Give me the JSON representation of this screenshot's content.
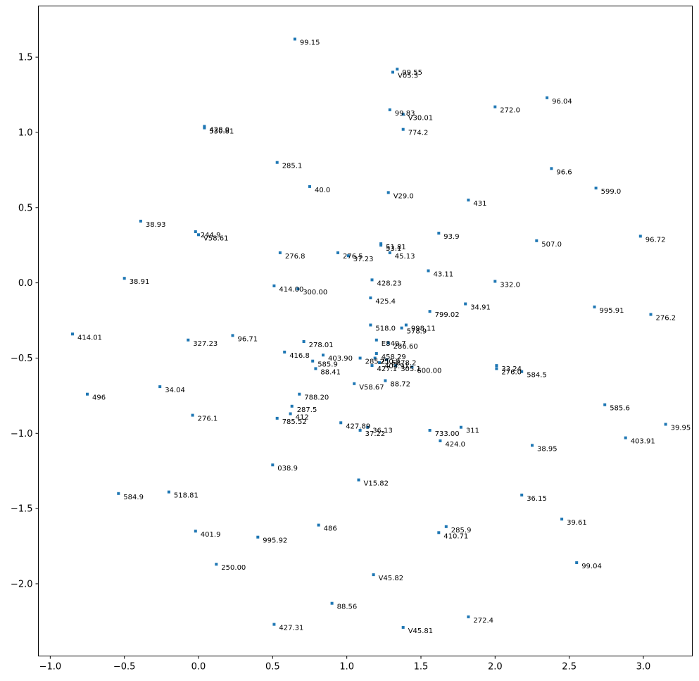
{
  "chart_data": {
    "type": "scatter",
    "title": "",
    "xlabel": "",
    "ylabel": "",
    "xlim": [
      -1.08,
      3.33
    ],
    "ylim": [
      -2.48,
      1.84
    ],
    "grid": false,
    "xticks": [
      {
        "v": -1.0,
        "label": "−1.0"
      },
      {
        "v": -0.5,
        "label": "−0.5"
      },
      {
        "v": 0.0,
        "label": "0.0"
      },
      {
        "v": 0.5,
        "label": "0.5"
      },
      {
        "v": 1.0,
        "label": "1.0"
      },
      {
        "v": 1.5,
        "label": "1.5"
      },
      {
        "v": 2.0,
        "label": "2.0"
      },
      {
        "v": 2.5,
        "label": "2.5"
      },
      {
        "v": 3.0,
        "label": "3.0"
      }
    ],
    "yticks": [
      {
        "v": 1.5,
        "label": "1.5"
      },
      {
        "v": 1.0,
        "label": "1.0"
      },
      {
        "v": 0.5,
        "label": "0.5"
      },
      {
        "v": 0.0,
        "label": "0.0"
      },
      {
        "v": -0.5,
        "label": "−0.5"
      },
      {
        "v": -1.0,
        "label": "−1.0"
      },
      {
        "v": -1.5,
        "label": "−1.5"
      },
      {
        "v": -2.0,
        "label": "−2.0"
      }
    ],
    "color": "#1f77b4",
    "points": [
      {
        "x": 0.65,
        "y": 1.62,
        "label": "99.15"
      },
      {
        "x": 1.34,
        "y": 1.42,
        "label": "99.55"
      },
      {
        "x": 1.31,
        "y": 1.4,
        "label": "V05.3"
      },
      {
        "x": 2.35,
        "y": 1.23,
        "label": "96.04"
      },
      {
        "x": 2.0,
        "y": 1.17,
        "label": "272.0"
      },
      {
        "x": 1.29,
        "y": 1.15,
        "label": "99.83"
      },
      {
        "x": 1.38,
        "y": 1.12,
        "label": "V30.01"
      },
      {
        "x": 1.38,
        "y": 1.02,
        "label": "774.2"
      },
      {
        "x": 0.04,
        "y": 1.04,
        "label": "428.0"
      },
      {
        "x": 0.04,
        "y": 1.03,
        "label": "530.81"
      },
      {
        "x": 0.53,
        "y": 0.8,
        "label": "285.1"
      },
      {
        "x": 2.38,
        "y": 0.76,
        "label": "96.6"
      },
      {
        "x": 0.75,
        "y": 0.64,
        "label": "40.0"
      },
      {
        "x": 2.68,
        "y": 0.63,
        "label": "599.0"
      },
      {
        "x": 1.28,
        "y": 0.6,
        "label": "V29.0"
      },
      {
        "x": 1.82,
        "y": 0.55,
        "label": "431"
      },
      {
        "x": -0.39,
        "y": 0.41,
        "label": "38.93"
      },
      {
        "x": -0.02,
        "y": 0.34,
        "label": "244.9"
      },
      {
        "x": 0.0,
        "y": 0.32,
        "label": "V58.61"
      },
      {
        "x": 1.62,
        "y": 0.33,
        "label": "93.9"
      },
      {
        "x": 2.98,
        "y": 0.31,
        "label": "96.72"
      },
      {
        "x": 2.28,
        "y": 0.28,
        "label": "507.0"
      },
      {
        "x": 1.23,
        "y": 0.26,
        "label": "51.81"
      },
      {
        "x": 1.23,
        "y": 0.25,
        "label": "53.1"
      },
      {
        "x": 1.29,
        "y": 0.2,
        "label": "45.13"
      },
      {
        "x": 0.55,
        "y": 0.2,
        "label": "276.8"
      },
      {
        "x": 0.94,
        "y": 0.2,
        "label": "276.5"
      },
      {
        "x": 1.01,
        "y": 0.18,
        "label": "37.23"
      },
      {
        "x": 1.55,
        "y": 0.08,
        "label": "43.11"
      },
      {
        "x": 1.17,
        "y": 0.02,
        "label": "428.23"
      },
      {
        "x": 2.0,
        "y": 0.01,
        "label": "332.0"
      },
      {
        "x": -0.5,
        "y": 0.03,
        "label": "38.91"
      },
      {
        "x": 0.51,
        "y": -0.02,
        "label": "414.00"
      },
      {
        "x": 0.67,
        "y": -0.04,
        "label": "300.00"
      },
      {
        "x": 1.16,
        "y": -0.1,
        "label": "425.4"
      },
      {
        "x": 1.8,
        "y": -0.14,
        "label": "34.91"
      },
      {
        "x": 2.67,
        "y": -0.16,
        "label": "995.91"
      },
      {
        "x": 1.56,
        "y": -0.19,
        "label": "799.02"
      },
      {
        "x": 3.05,
        "y": -0.21,
        "label": "276.2"
      },
      {
        "x": 1.16,
        "y": -0.28,
        "label": "518.0"
      },
      {
        "x": 1.4,
        "y": -0.28,
        "label": "998.11"
      },
      {
        "x": 1.37,
        "y": -0.3,
        "label": "578.9"
      },
      {
        "x": -0.85,
        "y": -0.34,
        "label": "414.01"
      },
      {
        "x": 0.23,
        "y": -0.35,
        "label": "96.71"
      },
      {
        "x": -0.07,
        "y": -0.38,
        "label": "327.23"
      },
      {
        "x": 0.71,
        "y": -0.39,
        "label": "278.01"
      },
      {
        "x": 1.2,
        "y": -0.38,
        "label": "E849.7"
      },
      {
        "x": 1.28,
        "y": -0.4,
        "label": "286.60"
      },
      {
        "x": 0.58,
        "y": -0.46,
        "label": "416.8"
      },
      {
        "x": 0.84,
        "y": -0.48,
        "label": "403.90"
      },
      {
        "x": 1.2,
        "y": -0.47,
        "label": "458.29"
      },
      {
        "x": 1.09,
        "y": -0.5,
        "label": "285.21"
      },
      {
        "x": 1.19,
        "y": -0.5,
        "label": "250.8"
      },
      {
        "x": 1.27,
        "y": -0.51,
        "label": "E878.2"
      },
      {
        "x": 0.77,
        "y": -0.52,
        "label": "585.9"
      },
      {
        "x": 1.22,
        "y": -0.53,
        "label": "403.91"
      },
      {
        "x": 1.17,
        "y": -0.55,
        "label": "427.1"
      },
      {
        "x": 1.33,
        "y": -0.55,
        "label": "305.1"
      },
      {
        "x": 1.44,
        "y": -0.56,
        "label": "600.00"
      },
      {
        "x": 0.79,
        "y": -0.57,
        "label": "88.41"
      },
      {
        "x": 2.01,
        "y": -0.55,
        "label": "33.24"
      },
      {
        "x": 2.01,
        "y": -0.57,
        "label": "276.0"
      },
      {
        "x": 2.18,
        "y": -0.59,
        "label": "584.5"
      },
      {
        "x": 1.26,
        "y": -0.65,
        "label": "88.72"
      },
      {
        "x": 1.05,
        "y": -0.67,
        "label": "V58.67"
      },
      {
        "x": -0.26,
        "y": -0.69,
        "label": "34.04"
      },
      {
        "x": 0.68,
        "y": -0.74,
        "label": "788.20"
      },
      {
        "x": -0.75,
        "y": -0.74,
        "label": "496"
      },
      {
        "x": 2.74,
        "y": -0.81,
        "label": "585.6"
      },
      {
        "x": 0.63,
        "y": -0.82,
        "label": "287.5"
      },
      {
        "x": 0.62,
        "y": -0.87,
        "label": "412"
      },
      {
        "x": -0.04,
        "y": -0.88,
        "label": "276.1"
      },
      {
        "x": 0.53,
        "y": -0.9,
        "label": "785.52"
      },
      {
        "x": 0.96,
        "y": -0.93,
        "label": "427.89"
      },
      {
        "x": 1.14,
        "y": -0.96,
        "label": "36.13"
      },
      {
        "x": 1.09,
        "y": -0.98,
        "label": "37.22"
      },
      {
        "x": 1.77,
        "y": -0.96,
        "label": "311"
      },
      {
        "x": 1.56,
        "y": -0.98,
        "label": "733.00"
      },
      {
        "x": 3.15,
        "y": -0.94,
        "label": "39.95"
      },
      {
        "x": 2.88,
        "y": -1.03,
        "label": "403.91"
      },
      {
        "x": 1.63,
        "y": -1.05,
        "label": "424.0"
      },
      {
        "x": 2.25,
        "y": -1.08,
        "label": "38.95"
      },
      {
        "x": 0.5,
        "y": -1.21,
        "label": "038.9"
      },
      {
        "x": 1.08,
        "y": -1.31,
        "label": "V15.82"
      },
      {
        "x": -0.54,
        "y": -1.4,
        "label": "584.9"
      },
      {
        "x": -0.2,
        "y": -1.39,
        "label": "518.81"
      },
      {
        "x": 2.18,
        "y": -1.41,
        "label": "36.15"
      },
      {
        "x": 2.45,
        "y": -1.57,
        "label": "39.61"
      },
      {
        "x": 0.81,
        "y": -1.61,
        "label": "486"
      },
      {
        "x": 1.67,
        "y": -1.62,
        "label": "285.9"
      },
      {
        "x": 1.62,
        "y": -1.66,
        "label": "410.71"
      },
      {
        "x": -0.02,
        "y": -1.65,
        "label": "401.9"
      },
      {
        "x": 0.4,
        "y": -1.69,
        "label": "995.92"
      },
      {
        "x": 2.55,
        "y": -1.86,
        "label": "99.04"
      },
      {
        "x": 0.12,
        "y": -1.87,
        "label": "250.00"
      },
      {
        "x": 1.18,
        "y": -1.94,
        "label": "V45.82"
      },
      {
        "x": 0.9,
        "y": -2.13,
        "label": "88.56"
      },
      {
        "x": 1.82,
        "y": -2.22,
        "label": "272.4"
      },
      {
        "x": 0.51,
        "y": -2.27,
        "label": "427.31"
      },
      {
        "x": 1.38,
        "y": -2.29,
        "label": "V45.81"
      }
    ]
  }
}
